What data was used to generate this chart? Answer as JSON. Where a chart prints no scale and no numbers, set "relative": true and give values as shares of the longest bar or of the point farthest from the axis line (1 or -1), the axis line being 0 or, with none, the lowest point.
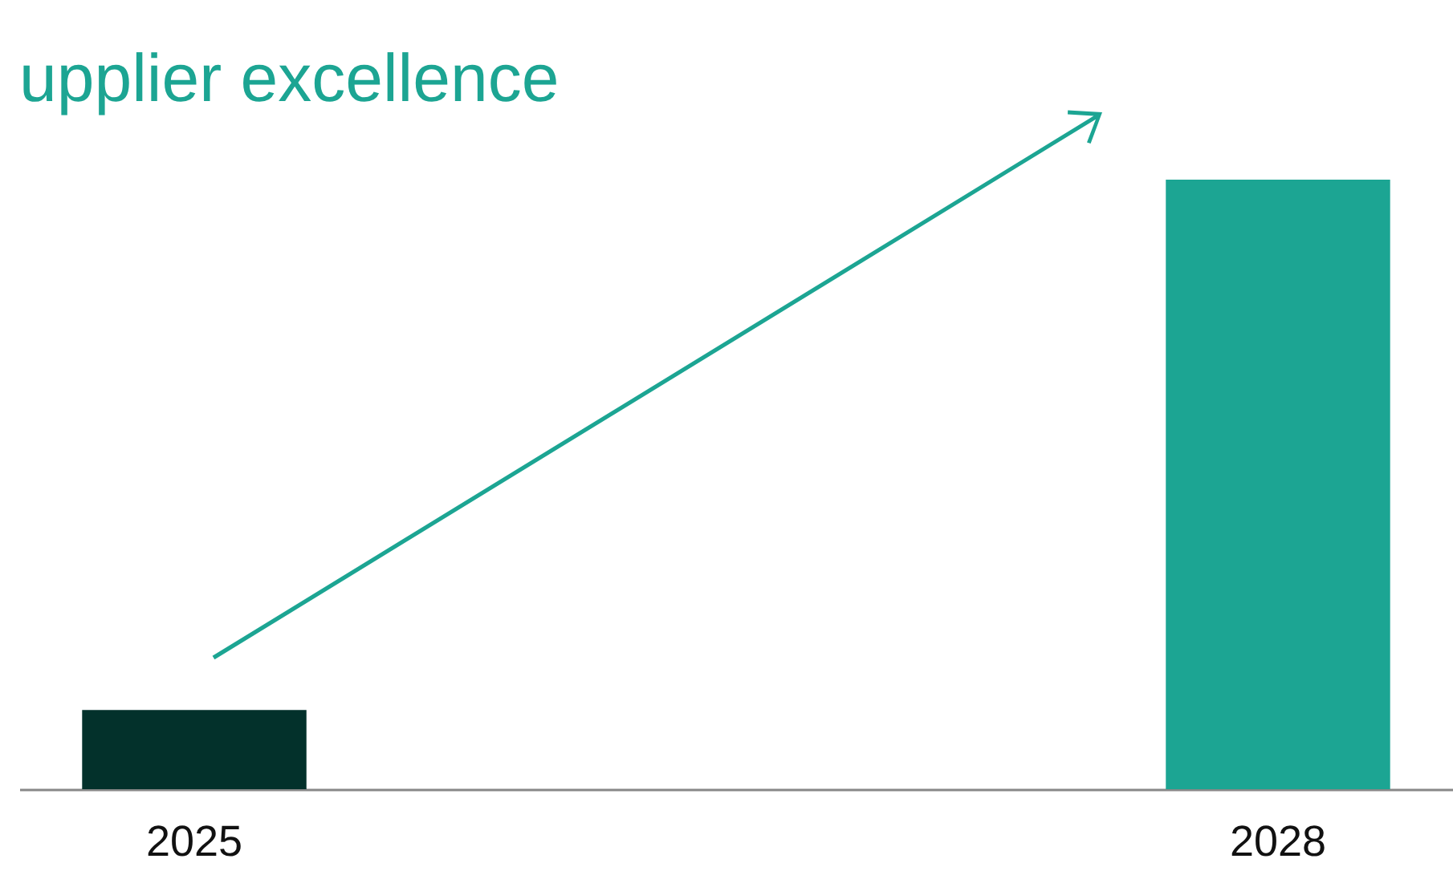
{
  "chart_data": {
    "type": "bar",
    "title": "upplier excellence",
    "relative": true,
    "categories": [
      "2025",
      "2028"
    ],
    "values": [
      0.13,
      1
    ],
    "colors": [
      "#03312b",
      "#1ca593"
    ]
  }
}
